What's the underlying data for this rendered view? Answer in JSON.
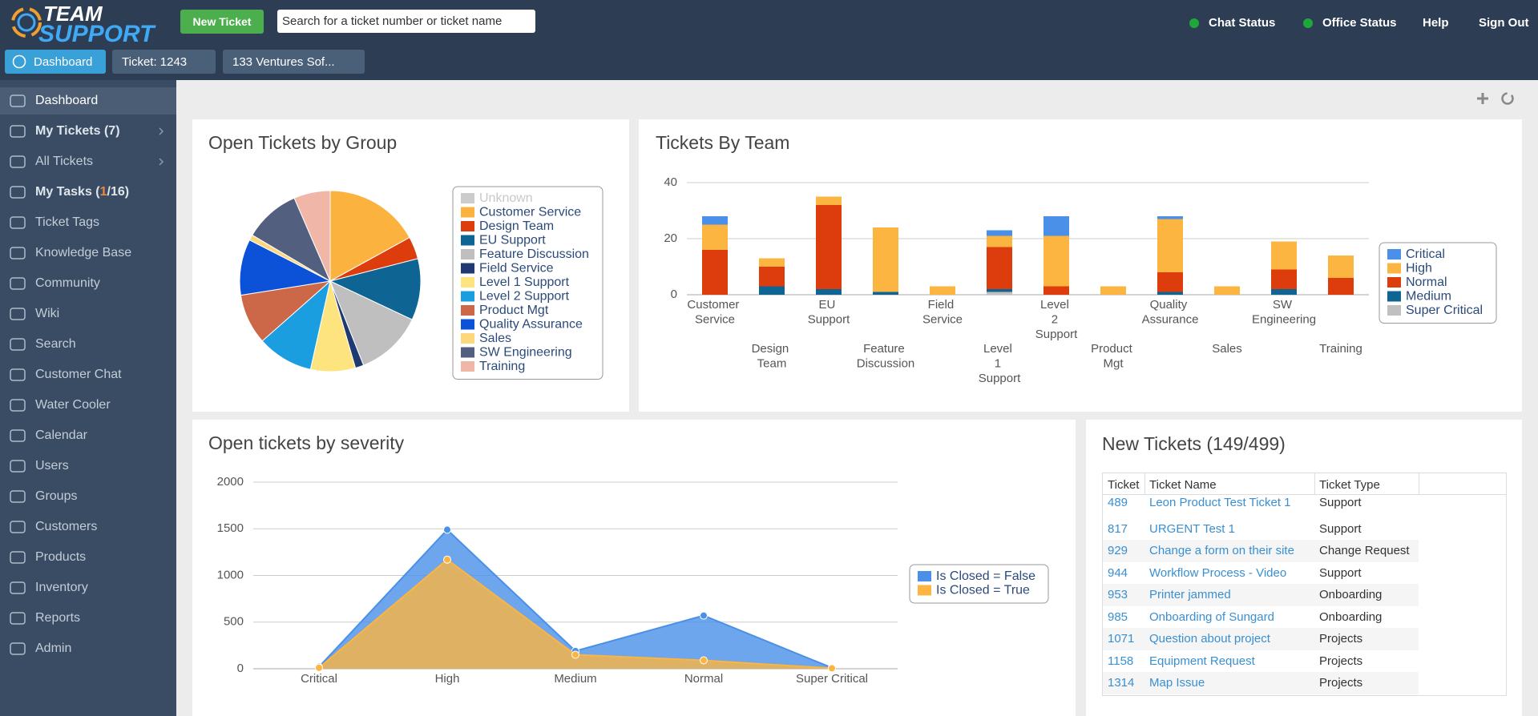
{
  "header": {
    "logo_top": "TEAM",
    "logo_bottom": "SUPPORT",
    "new_ticket": "New Ticket",
    "search_placeholder": "Search for a ticket number or ticket name",
    "status": [
      "Chat Status",
      "Office Status"
    ],
    "links": [
      "Help",
      "Sign Out"
    ]
  },
  "tabs": [
    "Dashboard",
    "Ticket: 1243",
    "133 Ventures Sof..."
  ],
  "sidebar": [
    {
      "label": "Dashboard"
    },
    {
      "label": "My Tickets (7)",
      "bold": true,
      "arrow": true
    },
    {
      "label": "All Tickets",
      "arrow": true
    },
    {
      "label": "My Tasks (",
      "highlight": "1",
      "rest": "/16)",
      "bold": true
    },
    {
      "label": "Ticket Tags"
    },
    {
      "label": "Knowledge Base"
    },
    {
      "label": "Community"
    },
    {
      "label": "Wiki"
    },
    {
      "label": "Search"
    },
    {
      "label": "Customer Chat"
    },
    {
      "label": "Water Cooler"
    },
    {
      "label": "Calendar"
    },
    {
      "label": "Users"
    },
    {
      "label": "Groups"
    },
    {
      "label": "Customers"
    },
    {
      "label": "Products"
    },
    {
      "label": "Inventory"
    },
    {
      "label": "Reports"
    },
    {
      "label": "Admin"
    }
  ],
  "chart_data": [
    {
      "type": "pie",
      "title": "Open Tickets by Group",
      "categories": [
        "Unknown",
        "Customer Service",
        "Design Team",
        "EU Support",
        "Feature Discussion",
        "Field Service",
        "Level 1 Support",
        "Level 2 Support",
        "Product Mgt",
        "Quality Assurance",
        "Sales",
        "SW Engineering",
        "Training"
      ],
      "values": [
        null,
        17,
        4,
        11,
        12,
        1.5,
        8,
        10,
        9,
        10,
        1,
        10,
        6.5
      ],
      "colors": [
        "#cccccc",
        "#fbb23f",
        "#dd3d0c",
        "#0e6594",
        "#bfbfbf",
        "#1f3a70",
        "#fde47f",
        "#1a9ee0",
        "#cc6748",
        "#0b52d8",
        "#fcd77c",
        "#535f7f",
        "#f0b6a8"
      ],
      "legend": "right"
    },
    {
      "type": "bar",
      "stacked": true,
      "title": "Tickets By Team",
      "categories": [
        "Customer Service",
        "Design Team",
        "EU Support",
        "Feature Discussion",
        "Field Service",
        "Level 1 Support",
        "Level 2 Support",
        "Product Mgt",
        "Quality Assurance",
        "Sales",
        "SW Engineering",
        "Training"
      ],
      "series": [
        {
          "name": "Critical",
          "color": "#4a90e8",
          "values": [
            3,
            0,
            0,
            0,
            0,
            2,
            7,
            0,
            1,
            0,
            0,
            0
          ]
        },
        {
          "name": "High",
          "color": "#fbb540",
          "values": [
            9,
            3,
            3,
            23,
            3,
            4,
            18,
            3,
            19,
            3,
            10,
            8
          ]
        },
        {
          "name": "Normal",
          "color": "#dd3d0c",
          "values": [
            16,
            7,
            30,
            0,
            0,
            15,
            3,
            0,
            7,
            0,
            7,
            6
          ]
        },
        {
          "name": "Medium",
          "color": "#0e6594",
          "values": [
            0,
            3,
            2,
            1,
            0,
            1,
            0,
            0,
            1,
            0,
            2,
            0
          ]
        },
        {
          "name": "Super Critical",
          "color": "#c0c0c0",
          "values": [
            0,
            0,
            0,
            0,
            0,
            1,
            0,
            0,
            0,
            0,
            0,
            0
          ]
        }
      ],
      "ylim": [
        0,
        40
      ],
      "yticks": [
        0,
        20,
        40
      ],
      "grid": true,
      "legend": "right"
    },
    {
      "type": "area",
      "title": "Open tickets by severity",
      "categories": [
        "Critical",
        "High",
        "Medium",
        "Normal",
        "Super Critical"
      ],
      "series": [
        {
          "name": "Is Closed = False",
          "color": "#4a90e8",
          "values": [
            20,
            1490,
            190,
            570,
            10
          ]
        },
        {
          "name": "Is Closed = True",
          "color": "#fbb540",
          "values": [
            10,
            1170,
            150,
            90,
            5
          ]
        }
      ],
      "ylim": [
        0,
        2000
      ],
      "yticks": [
        0,
        500,
        1000,
        1500,
        2000
      ],
      "grid": true,
      "legend": "right"
    }
  ],
  "table": {
    "title": "New Tickets (149/499)",
    "columns": [
      "Ticket",
      "Ticket Name",
      "Ticket Type"
    ],
    "rows": [
      [
        489,
        "Leon Product Test Ticket 1",
        "Support"
      ],
      [
        817,
        "URGENT Test 1",
        "Support"
      ],
      [
        929,
        "Change a form on their site",
        "Change Request"
      ],
      [
        944,
        "Workflow Process - Video",
        "Support"
      ],
      [
        953,
        "Printer jammed",
        "Onboarding"
      ],
      [
        985,
        "Onboarding of Sungard",
        "Onboarding"
      ],
      [
        1071,
        "Question about project",
        "Projects"
      ],
      [
        1158,
        "Equipment Request",
        "Projects"
      ],
      [
        1314,
        "Map Issue",
        "Projects"
      ]
    ]
  }
}
